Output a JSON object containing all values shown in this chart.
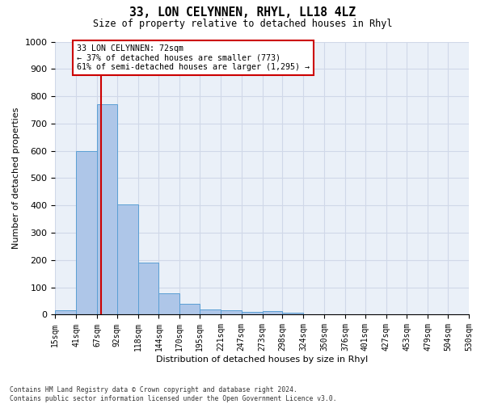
{
  "title": "33, LON CELYNNEN, RHYL, LL18 4LZ",
  "subtitle": "Size of property relative to detached houses in Rhyl",
  "xlabel": "Distribution of detached houses by size in Rhyl",
  "ylabel": "Number of detached properties",
  "bin_edges": [
    15,
    41,
    67,
    92,
    118,
    144,
    170,
    195,
    221,
    247,
    273,
    298,
    324,
    350,
    376,
    401,
    427,
    453,
    479,
    504,
    530
  ],
  "bar_heights": [
    15,
    600,
    770,
    405,
    190,
    78,
    40,
    18,
    15,
    10,
    13,
    8,
    0,
    0,
    0,
    0,
    0,
    0,
    0,
    0
  ],
  "bar_color": "#aec6e8",
  "bar_edge_color": "#5a9fd4",
  "grid_color": "#d0d8e8",
  "property_line_x": 72,
  "property_line_color": "#cc0000",
  "annotation_text": "33 LON CELYNNEN: 72sqm\n← 37% of detached houses are smaller (773)\n61% of semi-detached houses are larger (1,295) →",
  "annotation_box_color": "#cc0000",
  "ylim": [
    0,
    1000
  ],
  "yticks": [
    0,
    100,
    200,
    300,
    400,
    500,
    600,
    700,
    800,
    900,
    1000
  ],
  "tick_labels": [
    "15sqm",
    "41sqm",
    "67sqm",
    "92sqm",
    "118sqm",
    "144sqm",
    "170sqm",
    "195sqm",
    "221sqm",
    "247sqm",
    "273sqm",
    "298sqm",
    "324sqm",
    "350sqm",
    "376sqm",
    "401sqm",
    "427sqm",
    "453sqm",
    "479sqm",
    "504sqm",
    "530sqm"
  ],
  "footnote": "Contains HM Land Registry data © Crown copyright and database right 2024.\nContains public sector information licensed under the Open Government Licence v3.0.",
  "background_color": "#ffffff",
  "plot_background_color": "#eaf0f8"
}
